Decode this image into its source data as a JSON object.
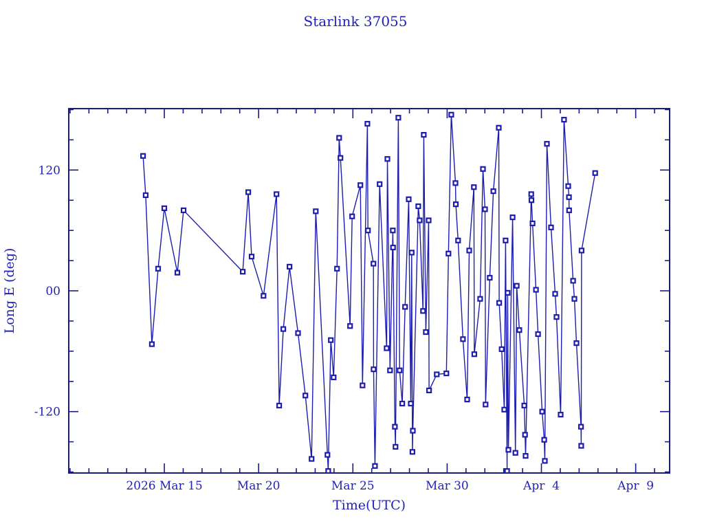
{
  "window": {
    "background": "#ffffff"
  },
  "chart_data": {
    "type": "line",
    "title": "Starlink 37055",
    "xlabel": "Time(UTC)",
    "ylabel": "Long E (deg)",
    "legend": "none",
    "grid": false,
    "colors": {
      "series": "#1c1cae",
      "frame": "#1a1a80",
      "text": "#2222b8"
    },
    "marker": "square-open",
    "x_unit": "day of March 2026 (continuous; Apr N = 31+N)",
    "xlim": [
      9.93,
      41.8
    ],
    "ylim": [
      -181,
      181
    ],
    "x_minor_step": 1,
    "y_minor_step": 30,
    "x_major_ticks": [
      {
        "value": 15,
        "label": "2026 Mar 15"
      },
      {
        "value": 20,
        "label": "Mar 20"
      },
      {
        "value": 25,
        "label": "Mar 25"
      },
      {
        "value": 30,
        "label": "Mar 30"
      },
      {
        "value": 35,
        "label": "Apr  4"
      },
      {
        "value": 40,
        "label": "Apr  9"
      }
    ],
    "y_major_ticks": [
      {
        "value": 120,
        "label": "120"
      },
      {
        "value": 0,
        "label": "00"
      },
      {
        "value": -120,
        "label": "-120"
      }
    ],
    "series": [
      {
        "name": "longitude-east-deg",
        "points": [
          [
            13.87,
            134
          ],
          [
            14.01,
            95
          ],
          [
            14.34,
            -53
          ],
          [
            14.67,
            22
          ],
          [
            15.0,
            82
          ],
          [
            15.69,
            18
          ],
          [
            16.02,
            80
          ],
          [
            19.16,
            19
          ],
          [
            19.45,
            98
          ],
          [
            19.63,
            34
          ],
          [
            20.26,
            -5
          ],
          [
            20.95,
            96
          ],
          [
            21.09,
            -114
          ],
          [
            21.31,
            -38
          ],
          [
            21.64,
            24
          ],
          [
            22.09,
            -42
          ],
          [
            22.48,
            -104
          ],
          [
            22.81,
            -167
          ],
          [
            23.03,
            79
          ],
          [
            23.65,
            -163
          ],
          [
            23.69,
            -179
          ],
          [
            23.83,
            -49
          ],
          [
            23.98,
            -86
          ],
          [
            24.16,
            22
          ],
          [
            24.27,
            152
          ],
          [
            24.34,
            132
          ],
          [
            24.85,
            -35
          ],
          [
            24.96,
            74
          ],
          [
            25.4,
            105
          ],
          [
            25.51,
            -94
          ],
          [
            25.77,
            166
          ],
          [
            25.8,
            60
          ],
          [
            26.09,
            27
          ],
          [
            26.1,
            -78
          ],
          [
            26.17,
            -174
          ],
          [
            26.42,
            106
          ],
          [
            26.79,
            -57
          ],
          [
            26.83,
            131
          ],
          [
            26.97,
            -79
          ],
          [
            27.12,
            60
          ],
          [
            27.13,
            43
          ],
          [
            27.23,
            -135
          ],
          [
            27.26,
            -155
          ],
          [
            27.41,
            172
          ],
          [
            27.48,
            -79
          ],
          [
            27.62,
            -112
          ],
          [
            27.77,
            -16
          ],
          [
            27.96,
            91
          ],
          [
            28.07,
            -112
          ],
          [
            28.12,
            38
          ],
          [
            28.16,
            -160
          ],
          [
            28.18,
            -139
          ],
          [
            28.47,
            84
          ],
          [
            28.54,
            70
          ],
          [
            28.72,
            -20
          ],
          [
            28.76,
            155
          ],
          [
            28.87,
            -41
          ],
          [
            29.02,
            70
          ],
          [
            29.04,
            -99
          ],
          [
            29.45,
            -83
          ],
          [
            29.96,
            -82
          ],
          [
            30.07,
            37
          ],
          [
            30.22,
            175
          ],
          [
            30.44,
            107
          ],
          [
            30.46,
            86
          ],
          [
            30.58,
            50
          ],
          [
            30.84,
            -48
          ],
          [
            31.06,
            -108
          ],
          [
            31.17,
            40
          ],
          [
            31.42,
            103
          ],
          [
            31.44,
            -63
          ],
          [
            31.75,
            -8
          ],
          [
            31.9,
            121
          ],
          [
            32.01,
            81
          ],
          [
            32.04,
            -113
          ],
          [
            32.26,
            13
          ],
          [
            32.45,
            99
          ],
          [
            32.74,
            162
          ],
          [
            32.76,
            -12
          ],
          [
            32.89,
            -58
          ],
          [
            33.03,
            -118
          ],
          [
            33.1,
            50
          ],
          [
            33.18,
            -179
          ],
          [
            33.21,
            -2
          ],
          [
            33.25,
            -158
          ],
          [
            33.47,
            73
          ],
          [
            33.62,
            -161
          ],
          [
            33.69,
            5
          ],
          [
            33.83,
            -39
          ],
          [
            34.09,
            -114
          ],
          [
            34.13,
            -143
          ],
          [
            34.16,
            -164
          ],
          [
            34.46,
            96
          ],
          [
            34.47,
            90
          ],
          [
            34.53,
            67
          ],
          [
            34.71,
            1
          ],
          [
            34.82,
            -43
          ],
          [
            35.04,
            -120
          ],
          [
            35.15,
            -148
          ],
          [
            35.18,
            -169
          ],
          [
            35.29,
            146
          ],
          [
            35.51,
            63
          ],
          [
            35.73,
            -3
          ],
          [
            35.8,
            -26
          ],
          [
            36.02,
            -123
          ],
          [
            36.2,
            170
          ],
          [
            36.42,
            104
          ],
          [
            36.46,
            93
          ],
          [
            36.47,
            80
          ],
          [
            36.68,
            10
          ],
          [
            36.75,
            -8
          ],
          [
            36.86,
            -52
          ],
          [
            37.1,
            -135
          ],
          [
            37.11,
            -154
          ],
          [
            37.13,
            40
          ],
          [
            37.85,
            117
          ]
        ]
      }
    ]
  }
}
